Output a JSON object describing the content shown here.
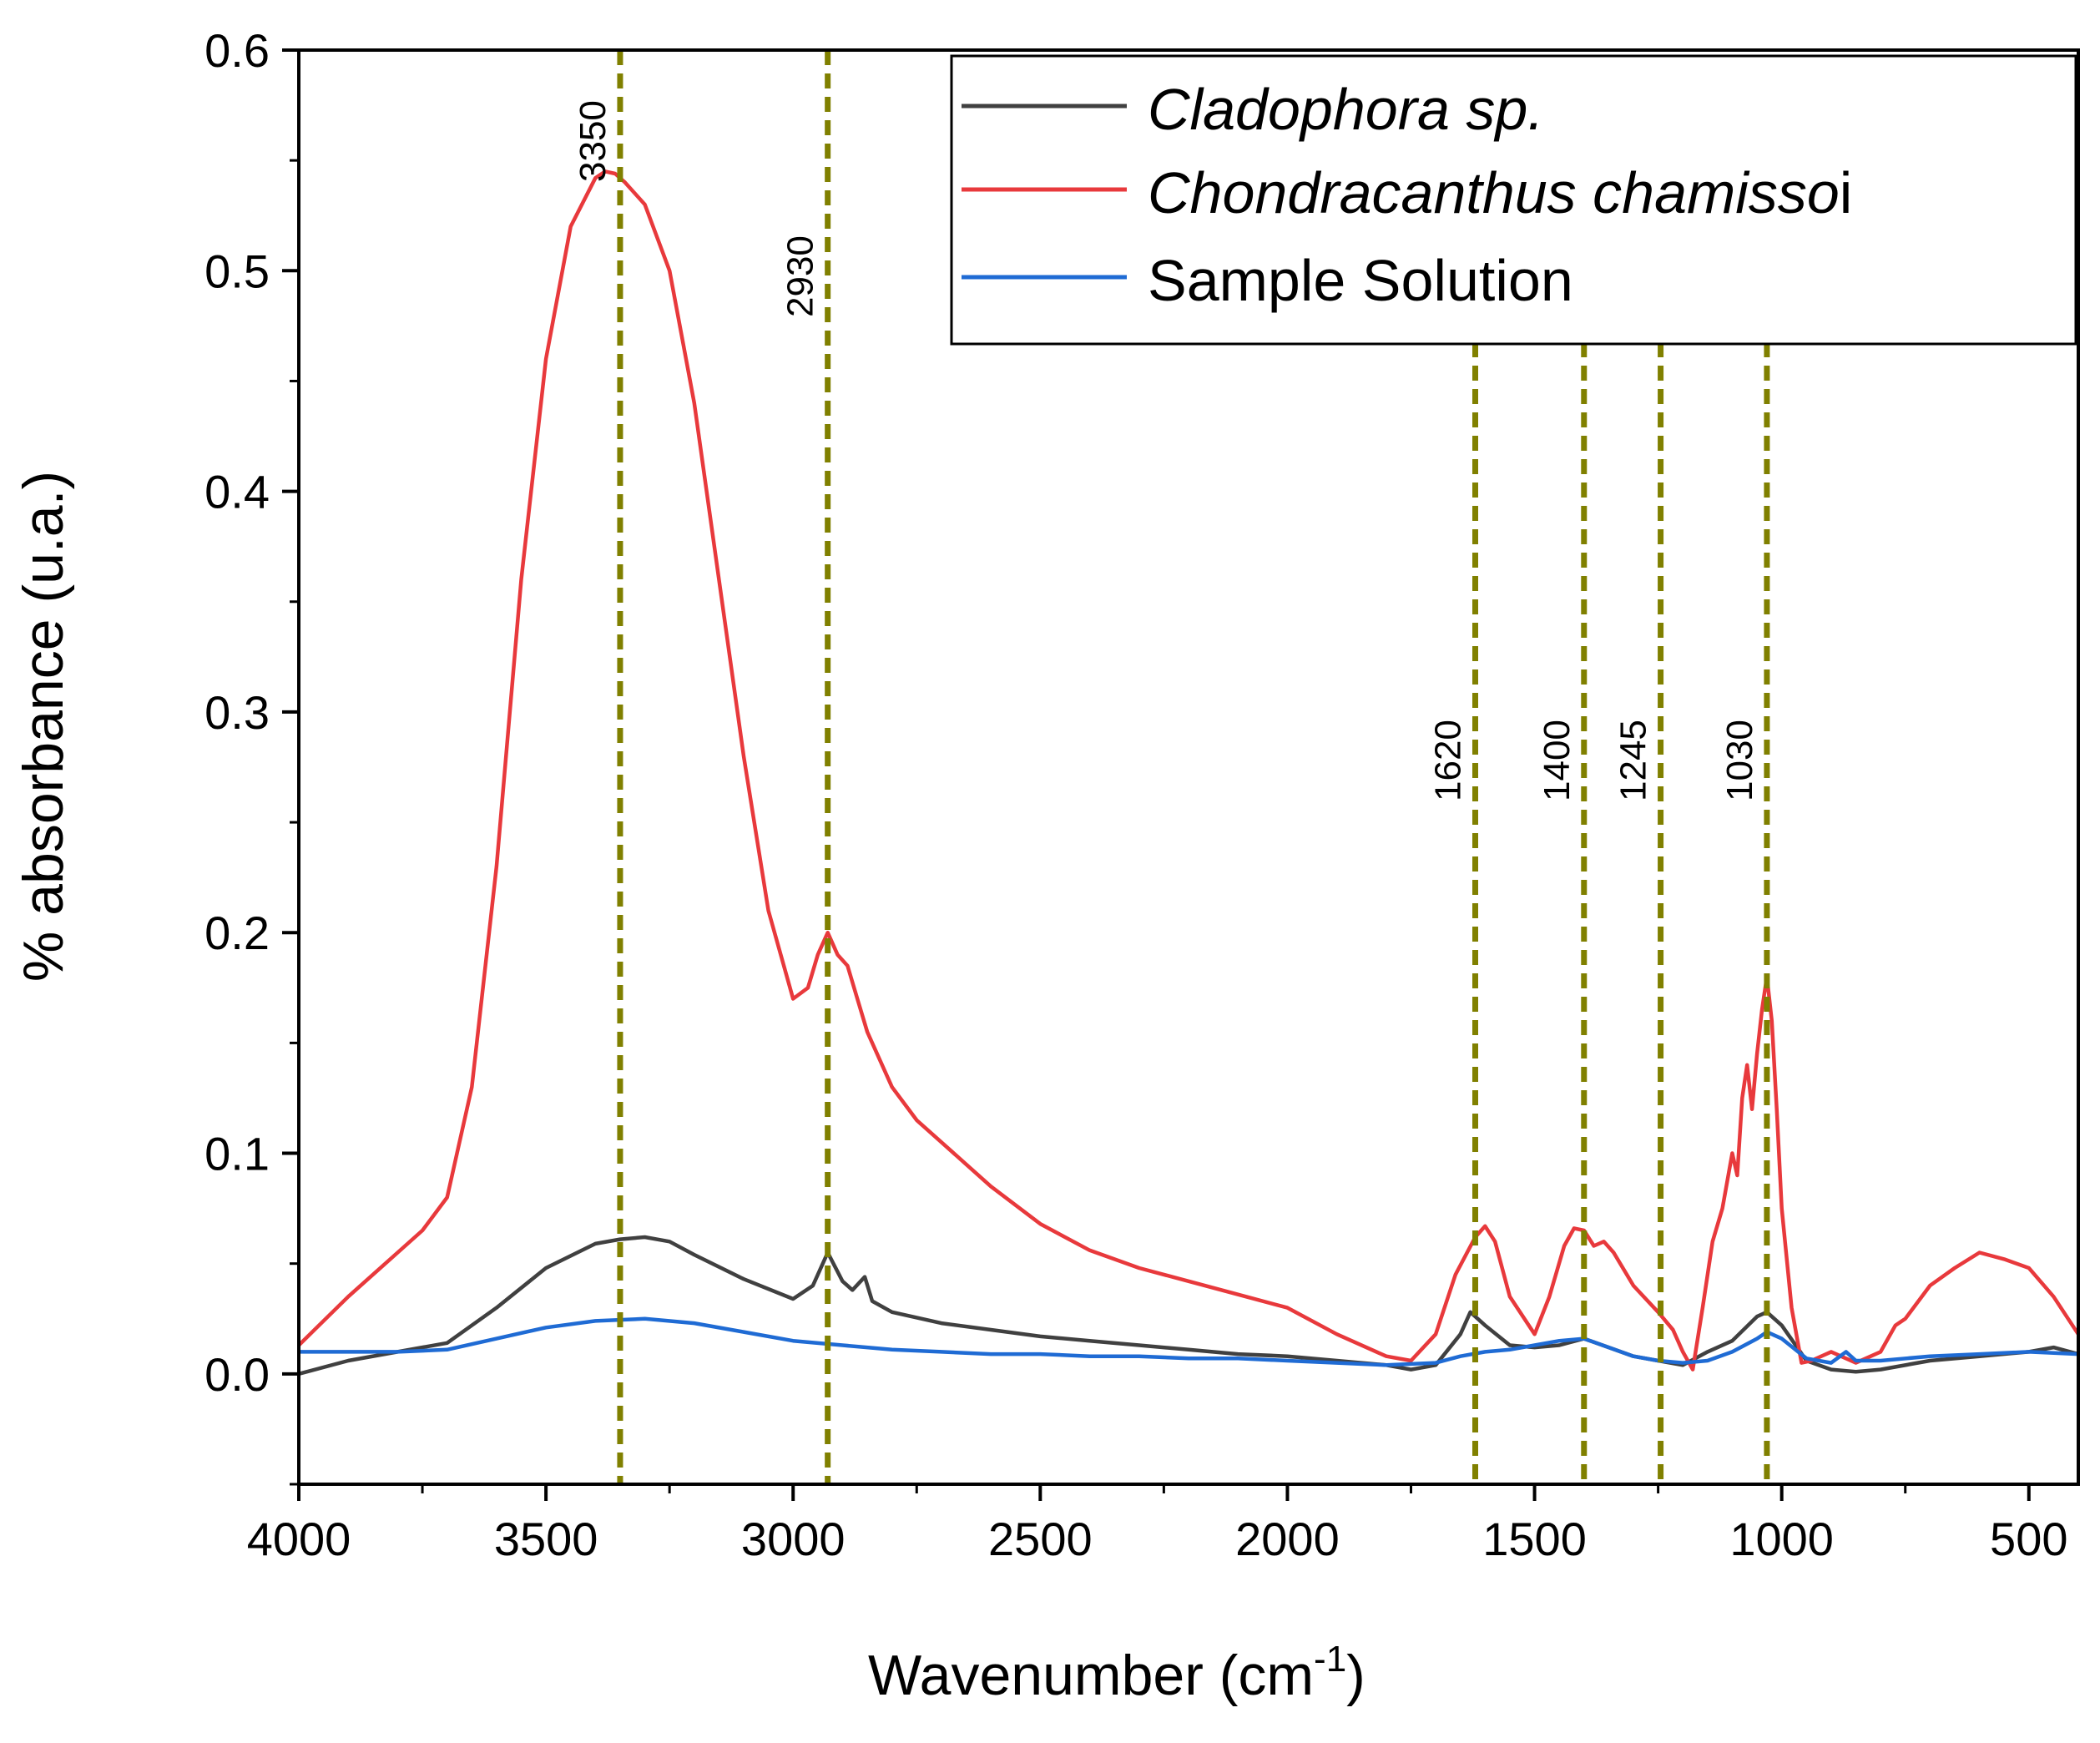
{
  "chart_data": {
    "type": "line",
    "title": "",
    "xlabel": "Wavenumber (cm",
    "xlabel_sup": "-1",
    "xlabel_close": ")",
    "ylabel": "% absorbance (u.a.)",
    "xlim": [
      4000,
      400
    ],
    "ylim": [
      -0.05,
      0.6
    ],
    "x_reversed": true,
    "xticks": [
      4000,
      3500,
      3000,
      2500,
      2000,
      1500,
      1000,
      500
    ],
    "xtick_labels": [
      "4000",
      "3500",
      "3000",
      "2500",
      "2000",
      "1500",
      "1000",
      "500"
    ],
    "yticks": [
      0.0,
      0.1,
      0.2,
      0.3,
      0.4,
      0.5,
      0.6
    ],
    "ytick_labels": [
      "0.0",
      "0.1",
      "0.2",
      "0.3",
      "0.4",
      "0.5",
      "0.6"
    ],
    "legend_position": "top-right",
    "peak_color": "#808000",
    "peak_lines": [
      {
        "x": 3350,
        "label": "3350"
      },
      {
        "x": 2930,
        "label": "2930"
      },
      {
        "x": 1620,
        "label": "1620"
      },
      {
        "x": 1400,
        "label": "1400"
      },
      {
        "x": 1245,
        "label": "1245"
      },
      {
        "x": 1030,
        "label": "1030"
      }
    ],
    "series": [
      {
        "name_main": "Cladophora sp.",
        "name_tail": "",
        "color": "#404040",
        "x": [
          4000,
          3900,
          3800,
          3700,
          3600,
          3500,
          3400,
          3350,
          3300,
          3250,
          3200,
          3100,
          3000,
          2960,
          2930,
          2900,
          2880,
          2855,
          2840,
          2800,
          2700,
          2600,
          2500,
          2400,
          2300,
          2200,
          2100,
          2000,
          1900,
          1800,
          1750,
          1700,
          1650,
          1630,
          1600,
          1550,
          1500,
          1450,
          1400,
          1350,
          1300,
          1250,
          1200,
          1150,
          1100,
          1050,
          1030,
          1000,
          950,
          900,
          850,
          800,
          700,
          600,
          500,
          450,
          400
        ],
        "y": [
          0.0,
          0.006,
          0.01,
          0.014,
          0.03,
          0.048,
          0.059,
          0.061,
          0.062,
          0.06,
          0.054,
          0.043,
          0.034,
          0.04,
          0.055,
          0.042,
          0.038,
          0.044,
          0.033,
          0.028,
          0.023,
          0.02,
          0.017,
          0.015,
          0.013,
          0.011,
          0.009,
          0.008,
          0.006,
          0.004,
          0.002,
          0.004,
          0.018,
          0.028,
          0.022,
          0.013,
          0.012,
          0.013,
          0.016,
          0.012,
          0.008,
          0.006,
          0.004,
          0.01,
          0.015,
          0.026,
          0.028,
          0.022,
          0.006,
          0.002,
          0.001,
          0.002,
          0.006,
          0.008,
          0.01,
          0.012,
          0.009
        ]
      },
      {
        "name_main": "Chondracanthus chamisso",
        "name_tail": "i",
        "color": "#e8393c",
        "x": [
          4000,
          3900,
          3800,
          3750,
          3700,
          3650,
          3600,
          3550,
          3500,
          3450,
          3400,
          3380,
          3360,
          3340,
          3300,
          3250,
          3200,
          3150,
          3100,
          3050,
          3000,
          2970,
          2950,
          2930,
          2910,
          2890,
          2870,
          2850,
          2800,
          2750,
          2700,
          2600,
          2500,
          2400,
          2300,
          2200,
          2100,
          2000,
          1900,
          1800,
          1750,
          1700,
          1660,
          1620,
          1600,
          1580,
          1550,
          1500,
          1470,
          1440,
          1420,
          1400,
          1380,
          1360,
          1340,
          1300,
          1250,
          1220,
          1200,
          1180,
          1160,
          1140,
          1120,
          1100,
          1090,
          1080,
          1070,
          1060,
          1050,
          1040,
          1030,
          1020,
          1010,
          1000,
          980,
          960,
          940,
          900,
          850,
          800,
          770,
          750,
          700,
          650,
          600,
          550,
          500,
          450,
          400
        ],
        "y": [
          0.013,
          0.035,
          0.055,
          0.065,
          0.08,
          0.13,
          0.23,
          0.36,
          0.46,
          0.52,
          0.542,
          0.545,
          0.544,
          0.54,
          0.53,
          0.5,
          0.44,
          0.36,
          0.28,
          0.21,
          0.17,
          0.175,
          0.19,
          0.2,
          0.19,
          0.185,
          0.17,
          0.155,
          0.13,
          0.115,
          0.105,
          0.085,
          0.068,
          0.056,
          0.048,
          0.042,
          0.036,
          0.03,
          0.018,
          0.008,
          0.006,
          0.018,
          0.045,
          0.062,
          0.067,
          0.06,
          0.035,
          0.018,
          0.035,
          0.058,
          0.066,
          0.065,
          0.058,
          0.06,
          0.055,
          0.04,
          0.028,
          0.02,
          0.01,
          0.002,
          0.03,
          0.06,
          0.075,
          0.1,
          0.09,
          0.125,
          0.14,
          0.12,
          0.145,
          0.165,
          0.18,
          0.16,
          0.12,
          0.075,
          0.03,
          0.005,
          0.006,
          0.01,
          0.005,
          0.01,
          0.022,
          0.025,
          0.04,
          0.048,
          0.055,
          0.052,
          0.048,
          0.035,
          0.018
        ]
      },
      {
        "name_main": "Sample Solution",
        "name_tail": "",
        "color": "#1f6bd4",
        "x": [
          4000,
          3800,
          3700,
          3600,
          3500,
          3400,
          3300,
          3200,
          3100,
          3000,
          2900,
          2800,
          2700,
          2600,
          2500,
          2400,
          2300,
          2200,
          2100,
          2000,
          1900,
          1800,
          1700,
          1650,
          1600,
          1550,
          1500,
          1450,
          1400,
          1350,
          1300,
          1250,
          1200,
          1150,
          1100,
          1050,
          1030,
          1000,
          950,
          900,
          870,
          850,
          800,
          700,
          600,
          500,
          400
        ],
        "y": [
          0.01,
          0.01,
          0.011,
          0.016,
          0.021,
          0.024,
          0.025,
          0.023,
          0.019,
          0.015,
          0.013,
          0.011,
          0.01,
          0.009,
          0.009,
          0.008,
          0.008,
          0.007,
          0.007,
          0.006,
          0.005,
          0.004,
          0.005,
          0.008,
          0.01,
          0.011,
          0.013,
          0.015,
          0.016,
          0.012,
          0.008,
          0.006,
          0.005,
          0.006,
          0.01,
          0.016,
          0.019,
          0.016,
          0.007,
          0.005,
          0.01,
          0.006,
          0.006,
          0.008,
          0.009,
          0.01,
          0.009
        ]
      }
    ]
  }
}
